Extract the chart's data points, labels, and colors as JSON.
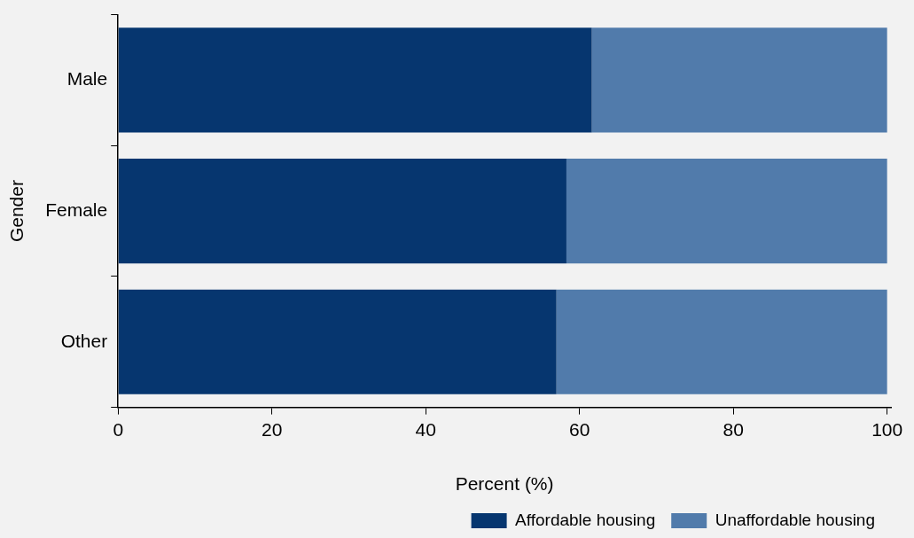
{
  "chart_data": {
    "type": "bar",
    "orientation": "horizontal",
    "stacked": true,
    "xlabel": "Percent (%)",
    "ylabel": "Gender",
    "categories": [
      "Male",
      "Female",
      "Other"
    ],
    "series": [
      {
        "name": "Affordable housing",
        "color": "#06366f",
        "values": [
          61.6,
          58.3,
          57.0
        ]
      },
      {
        "name": "Unaffordable housing",
        "color": "#517bab",
        "values": [
          38.4,
          41.7,
          43.0
        ]
      }
    ],
    "xlim": [
      0,
      100.5
    ],
    "xticks": [
      0,
      20,
      40,
      60,
      80,
      100
    ],
    "grid": false,
    "legend": "bottom"
  }
}
